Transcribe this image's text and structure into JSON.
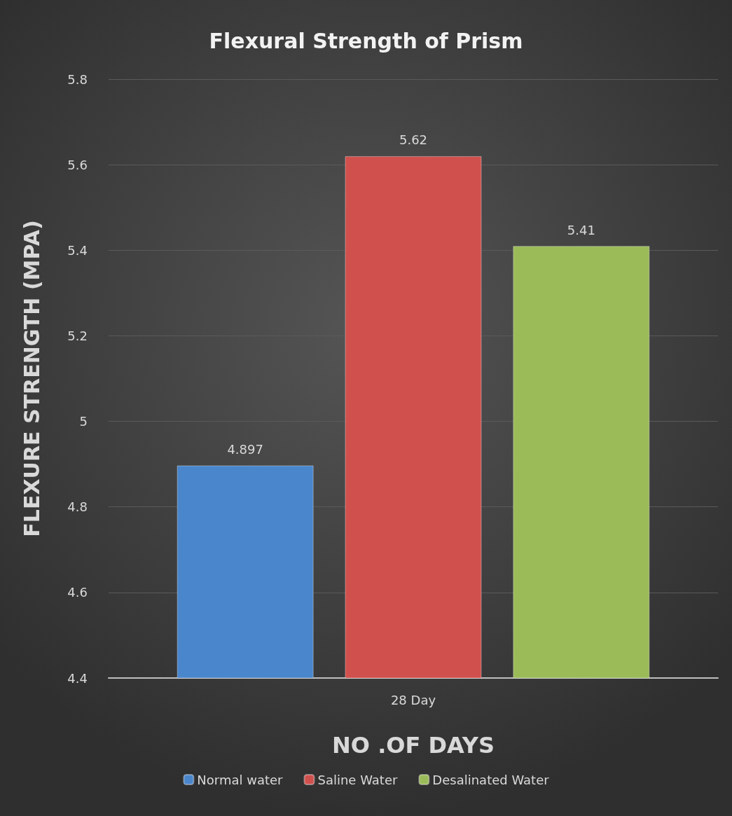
{
  "chart_data": {
    "type": "bar",
    "title": "Flexural Strength of Prism",
    "xlabel": "NO .OF DAYS",
    "ylabel": "FLEXURE STRENGTH (MPA)",
    "categories": [
      "28 Day"
    ],
    "series": [
      {
        "name": "Normal water",
        "color": "#4a86cb",
        "values": [
          4.897
        ]
      },
      {
        "name": "Saline Water",
        "color": "#d0504d",
        "values": [
          5.62
        ]
      },
      {
        "name": "Desalinated Water",
        "color": "#9bbb59",
        "values": [
          5.41
        ]
      }
    ],
    "ylim": [
      4.4,
      5.8
    ],
    "yticks": [
      4.4,
      4.6,
      4.8,
      5,
      5.2,
      5.4,
      5.6,
      5.8
    ],
    "grid": "y",
    "legend": "bottom",
    "data_labels": true
  }
}
